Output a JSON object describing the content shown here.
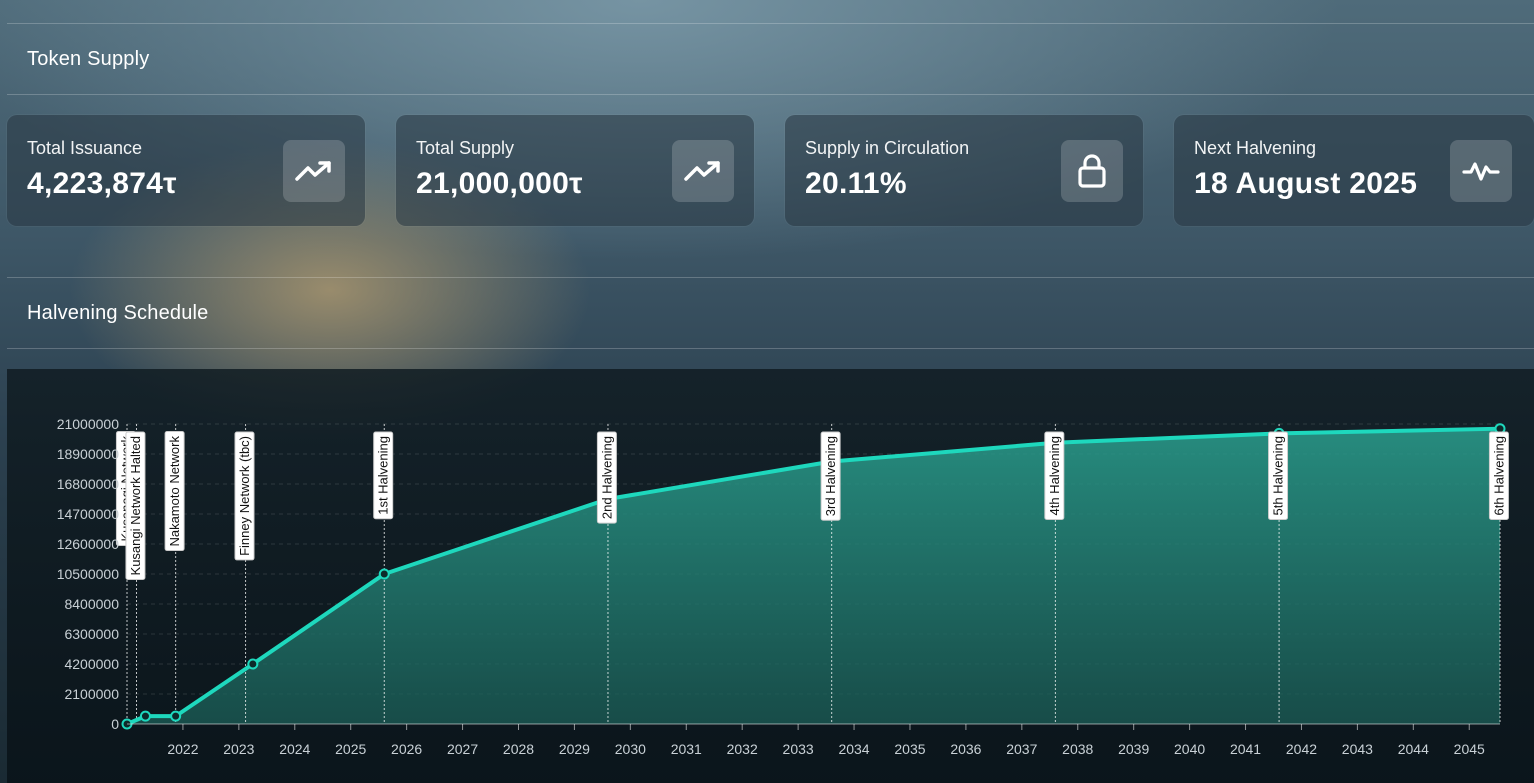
{
  "token_supply": {
    "title": "Token Supply",
    "cards": [
      {
        "label": "Total Issuance",
        "value": "4,223,874τ",
        "icon": "trending-up-icon"
      },
      {
        "label": "Total Supply",
        "value": "21,000,000τ",
        "icon": "trending-up-icon"
      },
      {
        "label": "Supply in Circulation",
        "value": "20.11%",
        "icon": "lock-icon"
      },
      {
        "label": "Next Halvening",
        "value": "18 August 2025",
        "icon": "activity-pulse-icon"
      }
    ]
  },
  "halvening_schedule": {
    "title": "Halvening Schedule"
  },
  "colors": {
    "line": "#1ed8bd",
    "area_top": "#2a9f8e",
    "area_bottom": "#1b5e57"
  },
  "chart_data": {
    "type": "area",
    "x_unit": "year",
    "xlim": [
      2021.0,
      2045.55
    ],
    "ylim": [
      0,
      21000000
    ],
    "yticks": [
      0,
      2100000,
      4200000,
      6300000,
      8400000,
      10500000,
      12600000,
      14700000,
      16800000,
      18900000,
      21000000
    ],
    "xticks": [
      2022,
      2023,
      2024,
      2025,
      2026,
      2027,
      2028,
      2029,
      2030,
      2031,
      2032,
      2033,
      2034,
      2035,
      2036,
      2037,
      2038,
      2039,
      2040,
      2041,
      2042,
      2043,
      2044,
      2045
    ],
    "series": [
      {
        "points": [
          {
            "x": 2021.0,
            "y": 0
          },
          {
            "x": 2021.33,
            "y": 550000
          },
          {
            "x": 2021.87,
            "y": 550000
          },
          {
            "x": 2023.25,
            "y": 4200000
          },
          {
            "x": 2025.6,
            "y": 10500000
          },
          {
            "x": 2029.6,
            "y": 15750000
          },
          {
            "x": 2033.6,
            "y": 18375000
          },
          {
            "x": 2037.6,
            "y": 19687500
          },
          {
            "x": 2041.6,
            "y": 20343750
          },
          {
            "x": 2045.55,
            "y": 20671875
          }
        ]
      }
    ],
    "annotations": [
      {
        "x": 2021.0,
        "label": "Kusanagi Network"
      },
      {
        "x": 2021.17,
        "label": "Kusangi Network Halted"
      },
      {
        "x": 2021.87,
        "label": "Nakamoto Network"
      },
      {
        "x": 2023.12,
        "label": "Finney Network (tbc)"
      },
      {
        "x": 2025.6,
        "label": "1st Halvening"
      },
      {
        "x": 2029.6,
        "label": "2nd Halvening"
      },
      {
        "x": 2033.6,
        "label": "3rd Halvening"
      },
      {
        "x": 2037.6,
        "label": "4th Halvening"
      },
      {
        "x": 2041.6,
        "label": "5th Halvening"
      },
      {
        "x": 2045.55,
        "label": "6th Halvening"
      }
    ]
  }
}
